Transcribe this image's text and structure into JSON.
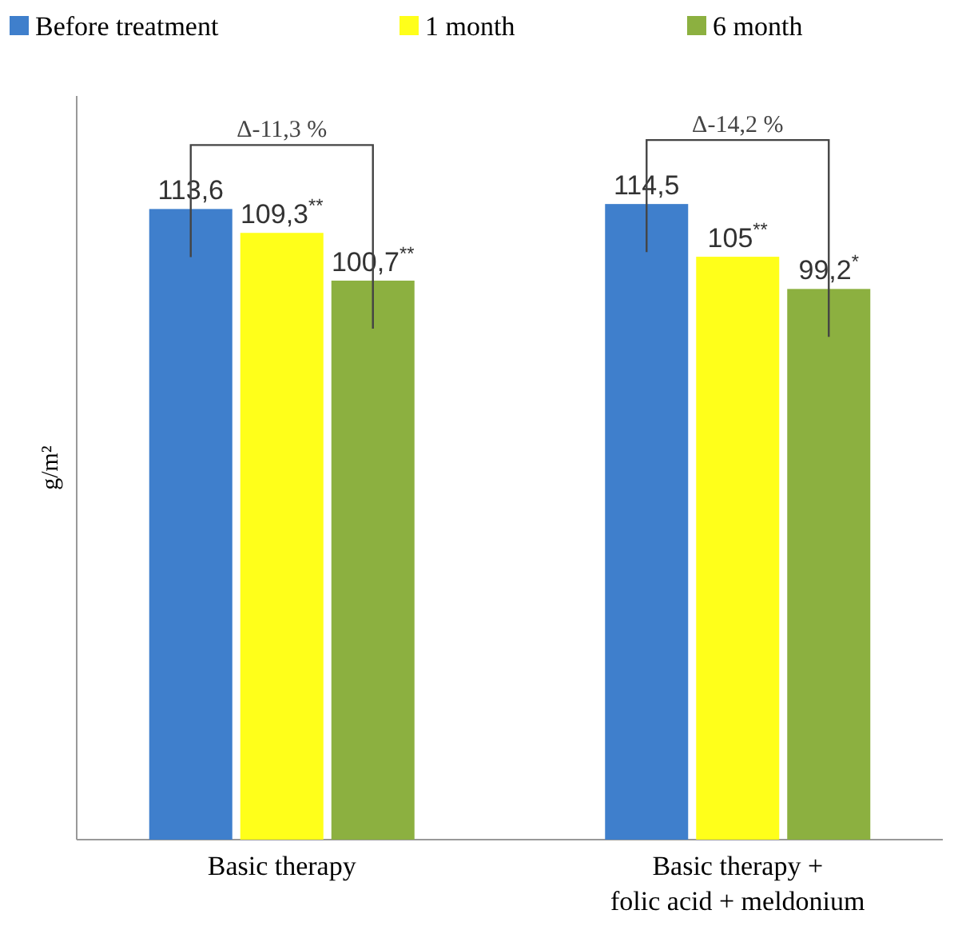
{
  "chart_data": {
    "type": "bar",
    "ylabel": "g/m²",
    "categories": [
      "Basic therapy",
      "Basic therapy +\nfolic acid + meldonium"
    ],
    "series": [
      {
        "name": "Before treatment",
        "color": "#3f7fcc",
        "values": [
          113.6,
          114.5
        ],
        "value_labels": [
          "113,6",
          "114,5"
        ]
      },
      {
        "name": "1 month",
        "color": "#ffff1a",
        "values": [
          109.3,
          105
        ],
        "value_labels": [
          "109,3$^{**}$",
          "105$^{**}$"
        ]
      },
      {
        "name": "6 month",
        "color": "#8cb040",
        "values": [
          100.7,
          99.2
        ],
        "value_labels": [
          "100,7$^{**}$",
          "99,2$^{*}$"
        ]
      }
    ],
    "annotations": [
      "Δ-11,3 %",
      "Δ-14,2 %"
    ],
    "legend": "top"
  }
}
